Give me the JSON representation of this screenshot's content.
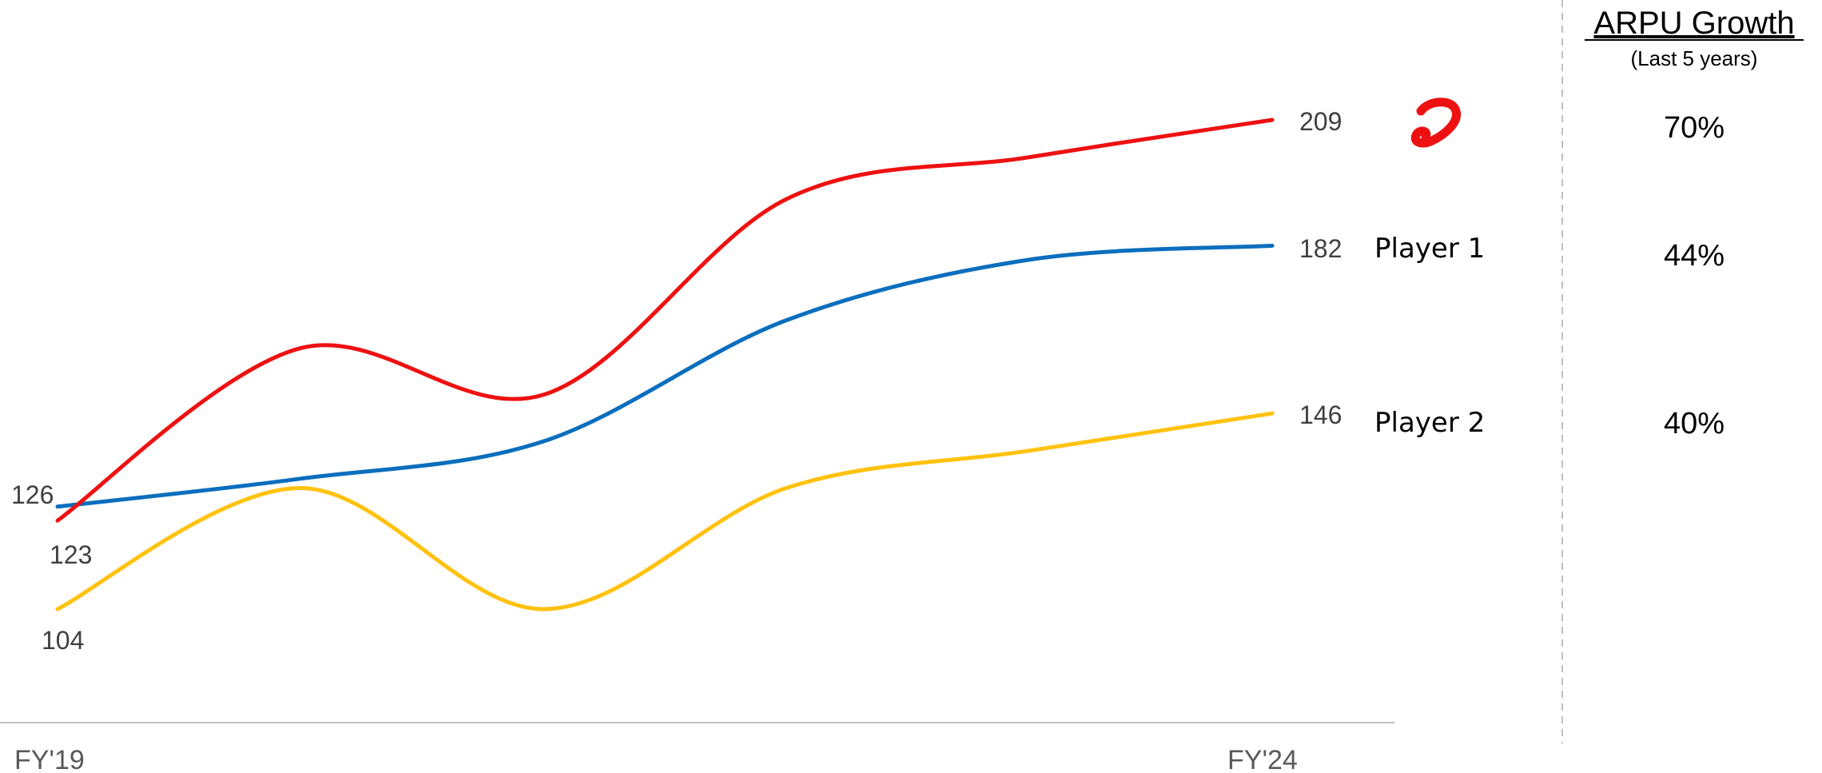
{
  "chart_data": {
    "type": "line",
    "x_labels": [
      "FY'19",
      "FY'24"
    ],
    "series": [
      {
        "name": "",
        "color": "#ee1111",
        "icon": "airtel-logo-icon",
        "values": [
          123,
          160,
          150,
          192,
          201,
          209
        ],
        "start_label": "123",
        "end_label": "209",
        "growth": "70%"
      },
      {
        "name": "Player 1",
        "color": "#0a6ebd",
        "values": [
          126,
          132,
          140,
          166,
          179,
          182
        ],
        "start_label": "126",
        "end_label": "182",
        "growth": "44%"
      },
      {
        "name": "Player 2",
        "color": "#ffc20e",
        "values": [
          104,
          130,
          104,
          130,
          138,
          146
        ],
        "start_label": "104",
        "end_label": "146",
        "growth": "40%"
      }
    ],
    "growth_panel": {
      "title": "ARPU Growth",
      "subtitle": "(Last 5 years)"
    },
    "grid": false,
    "legend": "right"
  }
}
